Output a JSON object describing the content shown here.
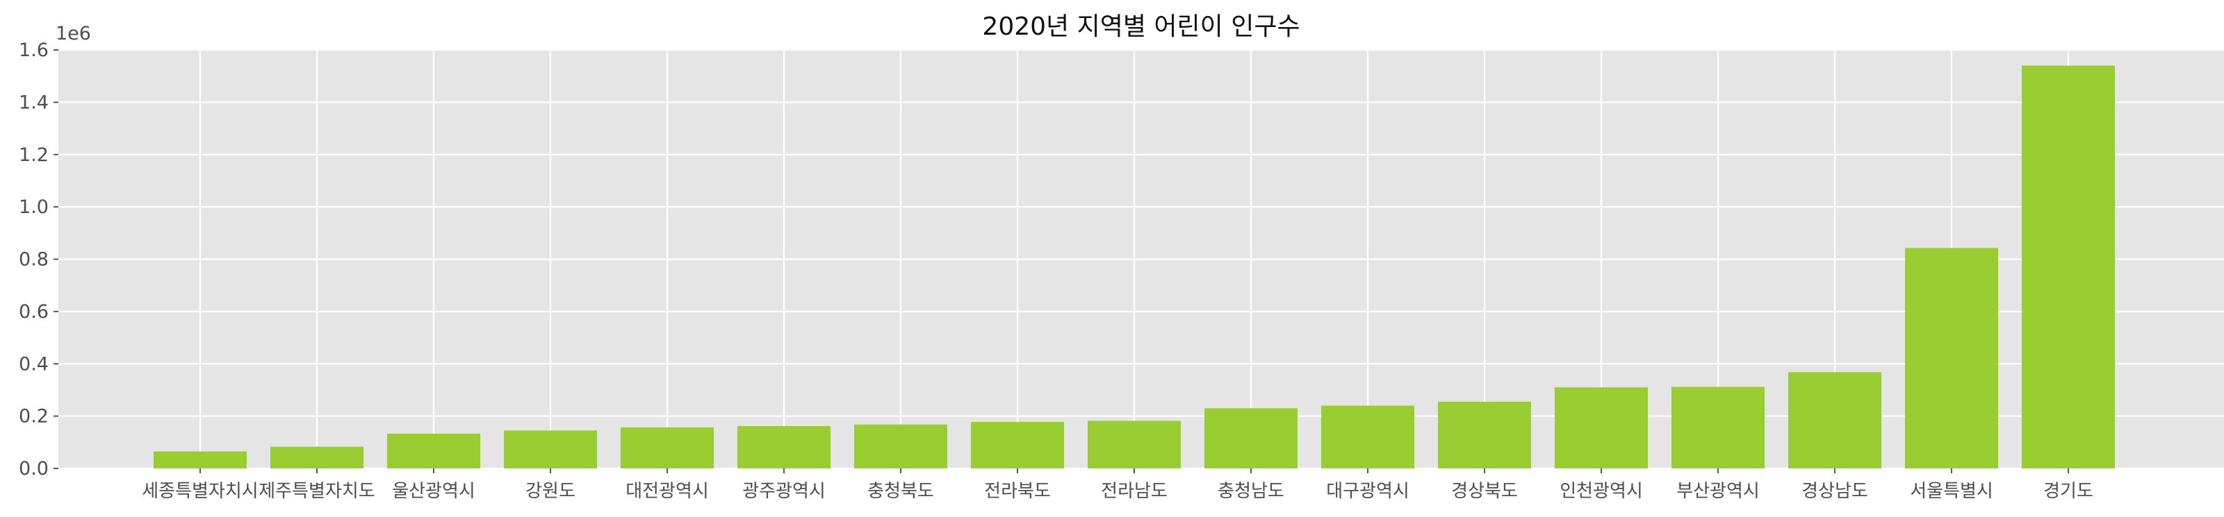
{
  "chart_data": {
    "type": "bar",
    "title": "2020년 지역별 어린이 인구수",
    "xlabel": "",
    "ylabel": "",
    "y_offset_label": "1e6",
    "ylim": [
      0,
      1.6
    ],
    "y_ticks": [
      0.0,
      0.2,
      0.4,
      0.6,
      0.8,
      1.0,
      1.2,
      1.4,
      1.6
    ],
    "y_tick_labels": [
      "0.0",
      "0.2",
      "0.4",
      "0.6",
      "0.8",
      "1.0",
      "1.2",
      "1.4",
      "1.6"
    ],
    "grid": true,
    "categories": [
      "세종특별자치시",
      "제주특별자치도",
      "울산광역시",
      "강원도",
      "대전광역시",
      "광주광역시",
      "충청북도",
      "전라북도",
      "전라남도",
      "충청남도",
      "대구광역시",
      "경상북도",
      "인천광역시",
      "부산광역시",
      "경상남도",
      "서울특별시",
      "경기도"
    ],
    "values": [
      0.065,
      0.083,
      0.133,
      0.145,
      0.157,
      0.162,
      0.168,
      0.178,
      0.182,
      0.23,
      0.24,
      0.255,
      0.31,
      0.312,
      0.368,
      0.843,
      1.54
    ],
    "bar_color": "#9acd32",
    "plot_background": "#e5e5e5",
    "grid_color": "#ffffff"
  }
}
